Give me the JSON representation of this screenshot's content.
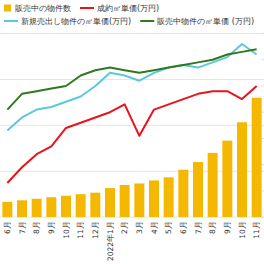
{
  "chart_data": {
    "type": "bar",
    "categories": [
      "6月",
      "7月",
      "8月",
      "9月",
      "10月",
      "11月",
      "12月",
      "2022年1月",
      "2月",
      "3月",
      "4月",
      "5月",
      "6月",
      "7月",
      "8月",
      "9月",
      "10月",
      "11月"
    ],
    "ylim": [
      0,
      1200
    ],
    "yticks": [
      0,
      300,
      600,
      900,
      1200
    ],
    "y2lim": [
      40,
      110
    ],
    "y2ticks": [
      40,
      50,
      60,
      70,
      80,
      90,
      100,
      110
    ],
    "grid": true,
    "legend": "top",
    "tick_labels": "x",
    "series": [
      {
        "name": "販売中の物件数",
        "type": "bar",
        "color": "#f5b800",
        "values": [
          100,
          110,
          120,
          130,
          140,
          150,
          160,
          190,
          210,
          220,
          240,
          260,
          310,
          360,
          420,
          500,
          620,
          780
        ]
      },
      {
        "name": "成約㎡単価(万円)",
        "type": "line",
        "axis": "y2",
        "color": "#e8141c",
        "values": [
          53,
          59,
          64,
          67,
          74,
          76,
          78,
          80,
          83,
          71,
          81,
          83,
          85,
          87,
          88,
          88,
          85,
          90
        ]
      },
      {
        "name": "新規売出し物件の㎡単価(万円)",
        "type": "line",
        "axis": "y2",
        "color": "#5cc8dc",
        "values": [
          73,
          78,
          81,
          82,
          84,
          86,
          90,
          95,
          94,
          92,
          95,
          97,
          98,
          97,
          99,
          101,
          106,
          102
        ]
      },
      {
        "name": "販売中物件の㎡単価 (万円)",
        "type": "line",
        "axis": "y2",
        "color": "#2f7a1f",
        "values": [
          81,
          87,
          88,
          89,
          90,
          94,
          96,
          97,
          96,
          95,
          96,
          97,
          98,
          99,
          100,
          102,
          103,
          104
        ]
      }
    ]
  }
}
